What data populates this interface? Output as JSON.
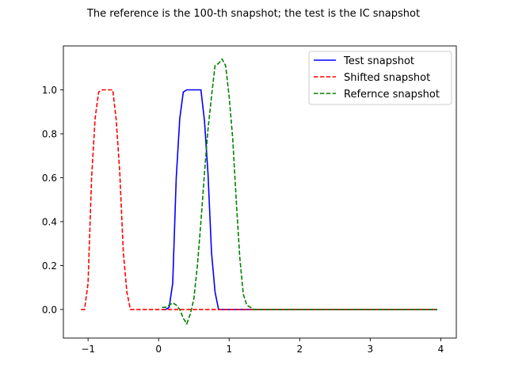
{
  "chart_data": {
    "type": "line",
    "title": "The reference is the 100-th snapshot; the test is the IC snapshot",
    "xlabel": "",
    "ylabel": "",
    "xlim": [
      -1.35,
      4.22
    ],
    "ylim": [
      -0.13,
      1.2
    ],
    "xticks": [
      -1,
      0,
      1,
      2,
      3,
      4
    ],
    "yticks": [
      0.0,
      0.2,
      0.4,
      0.6,
      0.8,
      1.0
    ],
    "xtick_labels": [
      "−1",
      "0",
      "1",
      "2",
      "3",
      "4"
    ],
    "ytick_labels": [
      "0.0",
      "0.2",
      "0.4",
      "0.6",
      "0.8",
      "1.0"
    ],
    "grid": false,
    "legend_position": "top-right",
    "series": [
      {
        "name": "Test snapshot",
        "color": "#0000ff",
        "dash": "solid",
        "x": [
          0.05,
          0.1,
          0.15,
          0.2,
          0.25,
          0.3,
          0.35,
          0.4,
          0.45,
          0.5,
          0.55,
          0.6,
          0.65,
          0.7,
          0.75,
          0.8,
          0.85,
          0.9,
          1.0,
          1.5,
          2.0,
          2.5,
          3.0,
          3.5,
          3.95
        ],
        "y": [
          0.0,
          0.0,
          0.01,
          0.12,
          0.6,
          0.87,
          0.99,
          1.0,
          1.0,
          1.0,
          1.0,
          1.0,
          0.86,
          0.62,
          0.26,
          0.08,
          0.0,
          0.0,
          0.0,
          0.0,
          0.0,
          0.0,
          0.0,
          0.0,
          0.0
        ]
      },
      {
        "name": "Shifted snapshot",
        "color": "#ff0000",
        "dash": "dashed",
        "x": [
          -1.1,
          -1.05,
          -1.0,
          -0.95,
          -0.9,
          -0.85,
          -0.8,
          -0.75,
          -0.7,
          -0.65,
          -0.6,
          -0.55,
          -0.5,
          -0.45,
          -0.4,
          -0.35,
          -0.3,
          0.0,
          0.5,
          1.0,
          1.5,
          2.0,
          2.5,
          3.0,
          3.5,
          3.95
        ],
        "y": [
          0.0,
          0.0,
          0.12,
          0.6,
          0.87,
          0.99,
          1.0,
          1.0,
          1.0,
          1.0,
          0.86,
          0.62,
          0.26,
          0.08,
          0.0,
          0.0,
          0.0,
          0.0,
          0.0,
          0.0,
          0.0,
          0.0,
          0.0,
          0.0,
          0.0,
          0.0
        ]
      },
      {
        "name": "Refernce snapshot",
        "color": "#008000",
        "dash": "dashed",
        "x": [
          0.05,
          0.1,
          0.15,
          0.2,
          0.25,
          0.3,
          0.35,
          0.4,
          0.45,
          0.5,
          0.55,
          0.6,
          0.65,
          0.7,
          0.75,
          0.8,
          0.85,
          0.9,
          0.95,
          1.0,
          1.05,
          1.1,
          1.15,
          1.2,
          1.25,
          1.3,
          1.35,
          1.5,
          2.0,
          2.5,
          3.0,
          3.5,
          3.95
        ],
        "y": [
          0.01,
          0.01,
          0.02,
          0.03,
          0.02,
          0.0,
          -0.04,
          -0.065,
          -0.02,
          0.05,
          0.2,
          0.4,
          0.62,
          0.82,
          0.97,
          1.11,
          1.12,
          1.14,
          1.11,
          0.97,
          0.78,
          0.5,
          0.24,
          0.07,
          0.02,
          0.01,
          0.0,
          0.0,
          0.0,
          0.0,
          0.0,
          0.0,
          0.0
        ]
      }
    ]
  }
}
